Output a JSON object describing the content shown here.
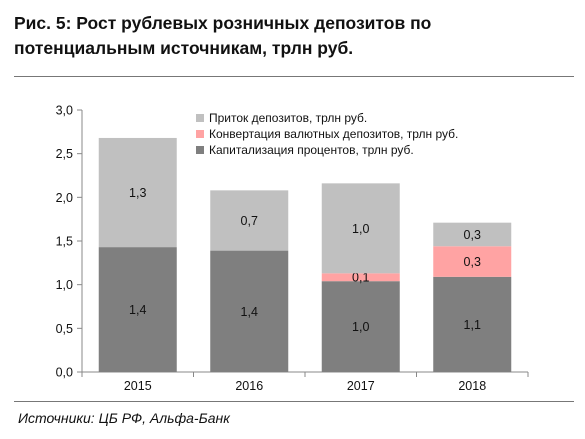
{
  "title": "Рис. 5: Рост рублевых розничных депозитов по потенциальным источникам, трлн руб.",
  "source": "Источники: ЦБ РФ, Альфа-Банк",
  "chart_data": {
    "type": "bar",
    "stacked": true,
    "categories": [
      "2015",
      "2016",
      "2017",
      "2018"
    ],
    "ylim": [
      0,
      3.0
    ],
    "yticks": [
      0,
      0.5,
      1.0,
      1.5,
      2.0,
      2.5,
      3.0
    ],
    "ytick_labels": [
      "0,0",
      "0,5",
      "1,0",
      "1,5",
      "2,0",
      "2,5",
      "3,0"
    ],
    "legend_position": "top-right",
    "grid": false,
    "series": [
      {
        "name": "Капитализация процентов, трлн руб.",
        "color": "#7f7f7f",
        "values": [
          1.43,
          1.39,
          1.04,
          1.09
        ],
        "labels": [
          "1,4",
          "1,4",
          "1,0",
          "1,1"
        ]
      },
      {
        "name": "Конвертация валютных депозитов, трлн руб.",
        "color": "#ffa3a3",
        "values": [
          0,
          0,
          0.09,
          0.35
        ],
        "labels": [
          "",
          "",
          "0,1",
          "0,3"
        ]
      },
      {
        "name": "Приток депозитов, трлн руб.",
        "color": "#c0c0c0",
        "values": [
          1.25,
          0.69,
          1.03,
          0.27
        ],
        "labels": [
          "1,3",
          "0,7",
          "1,0",
          "0,3"
        ]
      }
    ],
    "legend_order": [
      2,
      1,
      0
    ]
  }
}
